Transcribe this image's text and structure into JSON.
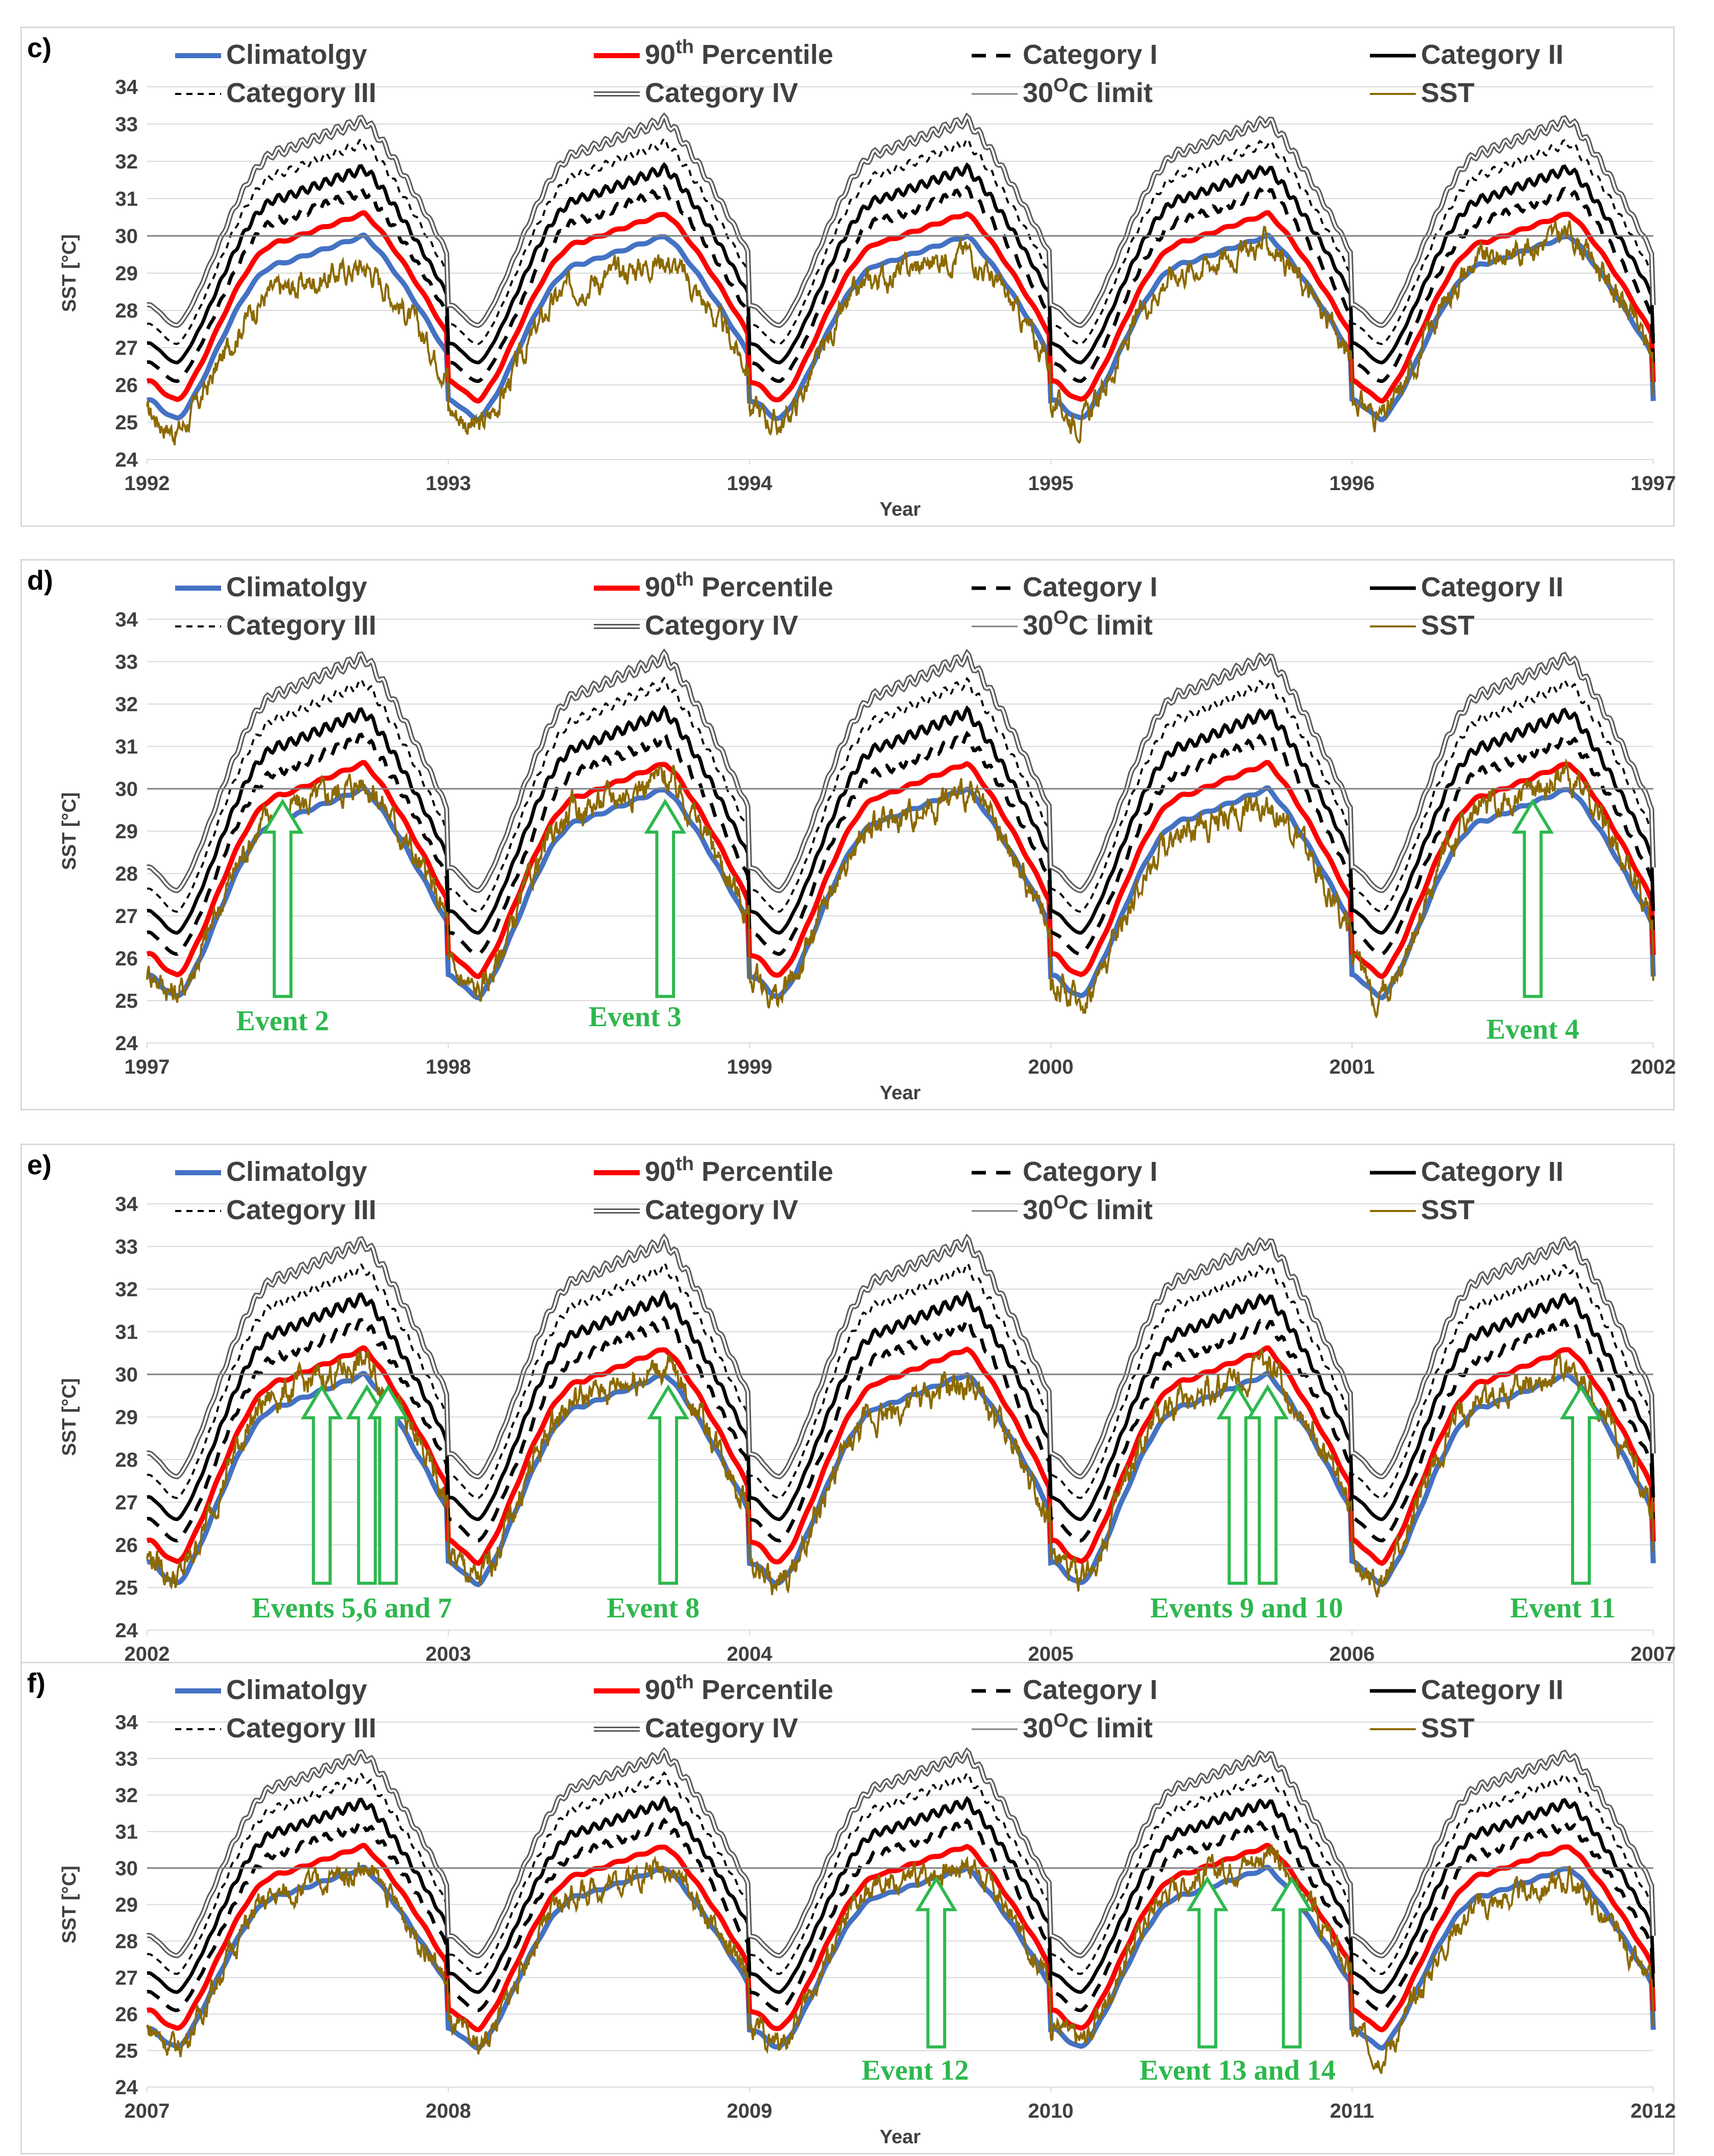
{
  "figure": {
    "colors": {
      "climatology": "#4472c4",
      "percentile": "#ff0000",
      "category": "#000000",
      "category_iv": "#595959",
      "limit": "#7f7f7f",
      "sst": "#8c6a00",
      "event": "#2db84d",
      "grid": "#d9d9d9"
    }
  },
  "chart_data": [
    {
      "type": "line",
      "panel": "c)",
      "x_ticks": [
        "1992",
        "1993",
        "1994",
        "1995",
        "1996",
        "1997"
      ],
      "xlim": [
        1992,
        1997
      ],
      "xlabel": "Year",
      "ylabel": "SST [°C]",
      "ylim": [
        24,
        34
      ],
      "y_ticks": [
        "24",
        "25",
        "26",
        "27",
        "28",
        "29",
        "30",
        "31",
        "32",
        "33",
        "34"
      ],
      "legend": {
        "climatology": "Climatolgy",
        "p90_pre": "90",
        "p90_sup": "th",
        "p90_post": " Percentile",
        "cat1": "Category I",
        "cat2": "Category II",
        "cat3": "Category III",
        "cat4": "Category IV",
        "limit_pre": "30",
        "limit_sup": "O",
        "limit_post": "C limit",
        "sst": "SST"
      },
      "series": [
        {
          "name": "Climatolgy",
          "seasonal_min": 25.1,
          "seasonal_max": 30.0
        },
        {
          "name": "90th Percentile",
          "seasonal_min": 25.6,
          "seasonal_max": 30.6
        },
        {
          "name": "Category I",
          "seasonal_min": 26.1,
          "seasonal_max": 31.2
        },
        {
          "name": "Category II",
          "seasonal_min": 26.6,
          "seasonal_max": 31.8
        },
        {
          "name": "Category III",
          "seasonal_min": 27.1,
          "seasonal_max": 32.5
        },
        {
          "name": "Category IV",
          "seasonal_min": 27.6,
          "seasonal_max": 33.1
        },
        {
          "name": "30°C limit",
          "value": 30.0
        }
      ],
      "sst_offsets": [
        -0.8,
        -0.6,
        -0.4,
        -0.2,
        0.1
      ],
      "events": []
    },
    {
      "type": "line",
      "panel": "d)",
      "x_ticks": [
        "1997",
        "1998",
        "1999",
        "2000",
        "2001",
        "2002"
      ],
      "xlim": [
        1997,
        2002
      ],
      "xlabel": "Year",
      "ylabel": "SST [°C]",
      "ylim": [
        24,
        34
      ],
      "y_ticks": [
        "24",
        "25",
        "26",
        "27",
        "28",
        "29",
        "30",
        "31",
        "32",
        "33",
        "34"
      ],
      "legend": {
        "climatology": "Climatolgy",
        "p90_pre": "90",
        "p90_sup": "th",
        "p90_post": " Percentile",
        "cat1": "Category I",
        "cat2": "Category II",
        "cat3": "Category III",
        "cat4": "Category IV",
        "limit_pre": "30",
        "limit_sup": "O",
        "limit_post": "C limit",
        "sst": "SST"
      },
      "series": [
        {
          "name": "Climatolgy",
          "seasonal_min": 25.1,
          "seasonal_max": 30.0
        },
        {
          "name": "90th Percentile",
          "seasonal_min": 25.6,
          "seasonal_max": 30.6
        },
        {
          "name": "Category I",
          "seasonal_min": 26.1,
          "seasonal_max": 31.2
        },
        {
          "name": "Category II",
          "seasonal_min": 26.6,
          "seasonal_max": 31.8
        },
        {
          "name": "Category III",
          "seasonal_min": 27.1,
          "seasonal_max": 32.5
        },
        {
          "name": "Category IV",
          "seasonal_min": 27.6,
          "seasonal_max": 33.1
        },
        {
          "name": "30°C limit",
          "value": 30.0
        }
      ],
      "sst_offsets": [
        0.2,
        0.3,
        -0.1,
        -0.3,
        0.3
      ],
      "events": [
        {
          "label": "Event 2",
          "arrow_x": [
            1997.45
          ],
          "label_x": 1997.45,
          "label_below": 24.3
        },
        {
          "label": "Event 3",
          "arrow_x": [
            1998.72
          ],
          "label_x": 1998.62,
          "label_below": 24.4
        },
        {
          "label": "Event 4",
          "arrow_x": [
            2001.6
          ],
          "label_x": 2001.6,
          "label_below": 24.1
        }
      ]
    },
    {
      "type": "line",
      "panel": "e)",
      "x_ticks": [
        "2002",
        "2003",
        "2004",
        "2005",
        "2006",
        "2007"
      ],
      "xlim": [
        2002,
        2007
      ],
      "xlabel": "Year",
      "ylabel": "SST [°C]",
      "ylim": [
        24,
        34
      ],
      "y_ticks": [
        "24",
        "25",
        "26",
        "27",
        "28",
        "29",
        "30",
        "31",
        "32",
        "33",
        "34"
      ],
      "legend": {
        "climatology": "Climatolgy",
        "p90_pre": "90",
        "p90_sup": "th",
        "p90_post": " Percentile",
        "cat1": "Category I",
        "cat2": "Category II",
        "cat3": "Category III",
        "cat4": "Category IV",
        "limit_pre": "30",
        "limit_sup": "O",
        "limit_post": "C limit",
        "sst": "SST"
      },
      "series": [
        {
          "name": "Climatolgy",
          "seasonal_min": 25.1,
          "seasonal_max": 30.0
        },
        {
          "name": "90th Percentile",
          "seasonal_min": 25.6,
          "seasonal_max": 30.6
        },
        {
          "name": "Category I",
          "seasonal_min": 26.1,
          "seasonal_max": 31.2
        },
        {
          "name": "Category II",
          "seasonal_min": 26.6,
          "seasonal_max": 31.8
        },
        {
          "name": "Category III",
          "seasonal_min": 27.1,
          "seasonal_max": 32.5
        },
        {
          "name": "Category IV",
          "seasonal_min": 27.6,
          "seasonal_max": 33.1
        },
        {
          "name": "30°C limit",
          "value": 30.0
        }
      ],
      "sst_offsets": [
        0.3,
        0.2,
        -0.2,
        0.2,
        0.2
      ],
      "events": [
        {
          "label": "Events 5,6 and 7",
          "arrow_x": [
            2002.58,
            2002.73,
            2002.8
          ],
          "label_x": 2002.68,
          "label_below": 24.3
        },
        {
          "label": "Event 8",
          "arrow_x": [
            2003.73
          ],
          "label_x": 2003.68,
          "label_below": 24.3
        },
        {
          "label": "Events 9 and 10",
          "arrow_x": [
            2005.62,
            2005.72
          ],
          "label_x": 2005.65,
          "label_below": 24.3
        },
        {
          "label": "Event 11",
          "arrow_x": [
            2006.76
          ],
          "label_x": 2006.7,
          "label_below": 24.3
        }
      ]
    },
    {
      "type": "line",
      "panel": "f)",
      "x_ticks": [
        "2007",
        "2008",
        "2009",
        "2010",
        "2011",
        "2012"
      ],
      "xlim": [
        2007,
        2012
      ],
      "xlabel": "Year",
      "ylabel": "SST [°C]",
      "ylim": [
        24,
        34
      ],
      "y_ticks": [
        "24",
        "25",
        "26",
        "27",
        "28",
        "29",
        "30",
        "31",
        "32",
        "33",
        "34"
      ],
      "legend": {
        "climatology": "Climatolgy",
        "p90_pre": "90",
        "p90_sup": "th",
        "p90_post": " Percentile",
        "cat1": "Category I",
        "cat2": "Category II",
        "cat3": "Category III",
        "cat4": "Category IV",
        "limit_pre": "30",
        "limit_sup": "O",
        "limit_post": "C limit",
        "sst": "SST"
      },
      "series": [
        {
          "name": "Climatolgy",
          "seasonal_min": 25.1,
          "seasonal_max": 30.0
        },
        {
          "name": "90th Percentile",
          "seasonal_min": 25.6,
          "seasonal_max": 30.6
        },
        {
          "name": "Category I",
          "seasonal_min": 26.1,
          "seasonal_max": 31.2
        },
        {
          "name": "Category II",
          "seasonal_min": 26.6,
          "seasonal_max": 31.8
        },
        {
          "name": "Category III",
          "seasonal_min": 27.1,
          "seasonal_max": 32.5
        },
        {
          "name": "Category IV",
          "seasonal_min": 27.6,
          "seasonal_max": 33.1
        },
        {
          "name": "30°C limit",
          "value": 30.0
        }
      ],
      "sst_offsets": [
        0.0,
        0.1,
        0.2,
        0.4,
        -0.3
      ],
      "events": [
        {
          "label": "Event 12",
          "arrow_x": [
            2009.62
          ],
          "label_x": 2009.55,
          "label_below": 24.2
        },
        {
          "label": "Event 13 and 14",
          "arrow_x": [
            2010.52,
            2010.8
          ],
          "label_x": 2010.62,
          "label_below": 24.2
        }
      ]
    }
  ]
}
